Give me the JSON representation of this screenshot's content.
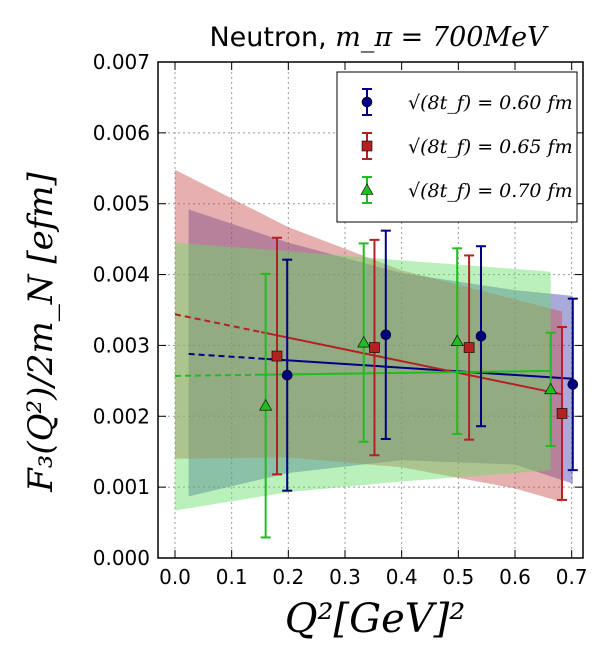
{
  "chart_data": {
    "type": "scatter",
    "title": "Neutron, m_π = 700MeV",
    "xlabel": "Q²[GeV]²",
    "ylabel": "F₃(Q²)/2m_N [efm]",
    "xlim": [
      -0.03,
      0.72
    ],
    "ylim": [
      0.0,
      0.007
    ],
    "x_ticks": [
      "0.0",
      "0.1",
      "0.2",
      "0.3",
      "0.4",
      "0.5",
      "0.6",
      "0.7"
    ],
    "y_ticks": [
      "0.000",
      "0.001",
      "0.002",
      "0.003",
      "0.004",
      "0.005",
      "0.006",
      "0.007"
    ],
    "grid": true,
    "legend_position": "top-right",
    "series": [
      {
        "name": "√(8t_f) = 0.60 fm",
        "color": "#000080",
        "band_color": "#4040b0",
        "marker": "circle",
        "points": [
          {
            "x": 0.198,
            "y": 0.00258,
            "err": 0.00163
          },
          {
            "x": 0.372,
            "y": 0.00315,
            "err": 0.00147
          },
          {
            "x": 0.54,
            "y": 0.00313,
            "err": 0.00127
          },
          {
            "x": 0.702,
            "y": 0.00245,
            "err": 0.00121
          }
        ],
        "fit": {
          "x0": 0.024,
          "y0": 0.00288,
          "x1": 0.702,
          "y1": 0.00253
        },
        "fit_dashed_to": 0.152,
        "band_upper": [
          [
            0.024,
            0.00492
          ],
          [
            0.2,
            0.00445
          ],
          [
            0.4,
            0.00402
          ],
          [
            0.6,
            0.00378
          ],
          [
            0.702,
            0.0037
          ]
        ],
        "band_lower": [
          [
            0.024,
            0.00087
          ],
          [
            0.2,
            0.0012
          ],
          [
            0.4,
            0.00138
          ],
          [
            0.6,
            0.00132
          ],
          [
            0.702,
            0.00105
          ]
        ]
      },
      {
        "name": "√(8t_f) = 0.65 fm",
        "color": "#b22222",
        "band_color": "#c85050",
        "marker": "square",
        "points": [
          {
            "x": 0.18,
            "y": 0.00285,
            "err": 0.00167
          },
          {
            "x": 0.352,
            "y": 0.00297,
            "err": 0.00152
          },
          {
            "x": 0.519,
            "y": 0.00297,
            "err": 0.0013
          },
          {
            "x": 0.683,
            "y": 0.00204,
            "err": 0.00122
          }
        ],
        "fit": {
          "x0": 0.0,
          "y0": 0.00344,
          "x1": 0.683,
          "y1": 0.00231
        },
        "fit_dashed_to": 0.152,
        "band_upper": [
          [
            0.0,
            0.00548
          ],
          [
            0.2,
            0.00467
          ],
          [
            0.4,
            0.00406
          ],
          [
            0.6,
            0.00365
          ],
          [
            0.683,
            0.00348
          ]
        ],
        "band_lower": [
          [
            0.0,
            0.0014
          ],
          [
            0.2,
            0.00142
          ],
          [
            0.4,
            0.00128
          ],
          [
            0.6,
            0.00098
          ],
          [
            0.683,
            0.00079
          ]
        ]
      },
      {
        "name": "√(8t_f) = 0.70 fm",
        "color": "#22bb22",
        "band_color": "#66dd66",
        "marker": "triangle",
        "points": [
          {
            "x": 0.16,
            "y": 0.00215,
            "err": 0.00186
          },
          {
            "x": 0.333,
            "y": 0.00304,
            "err": 0.0014
          },
          {
            "x": 0.498,
            "y": 0.00306,
            "err": 0.00131
          },
          {
            "x": 0.663,
            "y": 0.00238,
            "err": 0.0008
          }
        ],
        "fit": {
          "x0": 0.0,
          "y0": 0.00257,
          "x1": 0.663,
          "y1": 0.00264
        },
        "fit_dashed_to": 0.152,
        "band_upper": [
          [
            0.0,
            0.00445
          ],
          [
            0.2,
            0.00433
          ],
          [
            0.4,
            0.0042
          ],
          [
            0.6,
            0.00408
          ],
          [
            0.663,
            0.00404
          ]
        ],
        "band_lower": [
          [
            0.0,
            0.00067
          ],
          [
            0.2,
            0.00093
          ],
          [
            0.4,
            0.00108
          ],
          [
            0.6,
            0.0012
          ],
          [
            0.663,
            0.00124
          ]
        ]
      }
    ]
  }
}
